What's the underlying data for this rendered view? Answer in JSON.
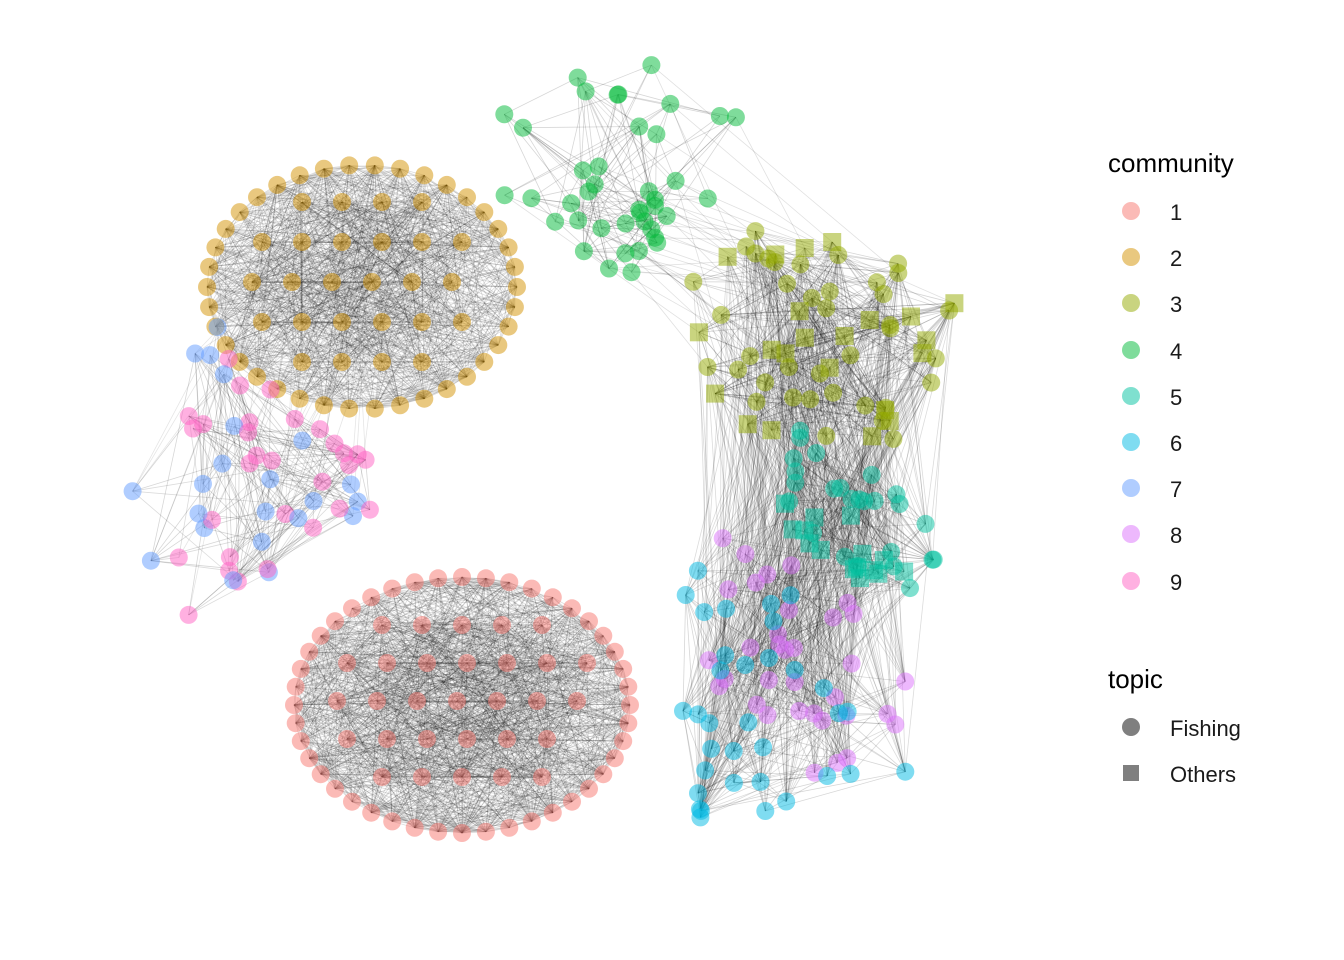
{
  "legend": {
    "community": {
      "title": "community",
      "items": [
        {
          "label": "1",
          "color": "#F8766D"
        },
        {
          "label": "2",
          "color": "#D39200"
        },
        {
          "label": "3",
          "color": "#93AA00"
        },
        {
          "label": "4",
          "color": "#00BA38"
        },
        {
          "label": "5",
          "color": "#00C19F"
        },
        {
          "label": "6",
          "color": "#00B9E3"
        },
        {
          "label": "7",
          "color": "#619CFF"
        },
        {
          "label": "8",
          "color": "#DB72FB"
        },
        {
          "label": "9",
          "color": "#FF61C3"
        }
      ]
    },
    "topic": {
      "title": "topic",
      "items": [
        {
          "label": "Fishing",
          "shape": "circle"
        },
        {
          "label": "Others",
          "shape": "square"
        }
      ]
    }
  },
  "graph": {
    "node_opacity": 0.5,
    "edge_color": "#000000",
    "clusters": [
      {
        "community": "1",
        "shape": "circle"
      },
      {
        "community": "2",
        "shape": "circle"
      },
      {
        "community": "3",
        "shape": "mixed"
      },
      {
        "community": "4",
        "shape": "circle"
      },
      {
        "community": "5",
        "shape": "mixed"
      },
      {
        "community": "6",
        "shape": "circle"
      },
      {
        "community": "7",
        "shape": "circle"
      },
      {
        "community": "8",
        "shape": "circle"
      },
      {
        "community": "9",
        "shape": "circle"
      }
    ]
  }
}
